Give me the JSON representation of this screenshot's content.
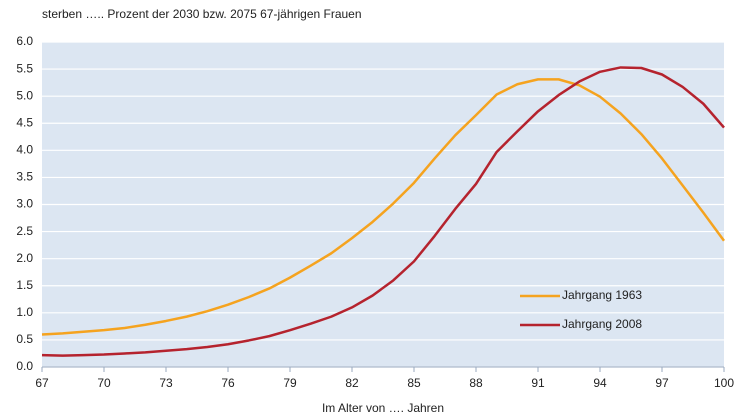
{
  "chart_data": {
    "type": "line",
    "title": "sterben ….. Prozent der 2030 bzw. 2075 67-jährigen Frauen",
    "x_label": "Im Alter von …. Jahren",
    "x": [
      67,
      68,
      69,
      70,
      71,
      72,
      73,
      74,
      75,
      76,
      77,
      78,
      79,
      80,
      81,
      82,
      83,
      84,
      85,
      86,
      87,
      88,
      89,
      90,
      91,
      92,
      93,
      94,
      95,
      96,
      97,
      98,
      99,
      100
    ],
    "series": [
      {
        "name": "Jahrgang 1963",
        "color": "#f5a31f",
        "values": [
          0.6,
          0.62,
          0.65,
          0.68,
          0.72,
          0.78,
          0.85,
          0.93,
          1.03,
          1.15,
          1.29,
          1.45,
          1.65,
          1.87,
          2.1,
          2.38,
          2.68,
          3.02,
          3.4,
          3.85,
          4.28,
          4.65,
          5.03,
          5.22,
          5.31,
          5.31,
          5.2,
          4.99,
          4.68,
          4.3,
          3.85,
          3.35,
          2.85,
          2.33
        ]
      },
      {
        "name": "Jahrgang 2008",
        "color": "#b5232e",
        "values": [
          0.22,
          0.21,
          0.22,
          0.23,
          0.25,
          0.27,
          0.3,
          0.33,
          0.37,
          0.42,
          0.49,
          0.57,
          0.68,
          0.8,
          0.93,
          1.1,
          1.32,
          1.6,
          1.95,
          2.42,
          2.92,
          3.38,
          3.97,
          4.35,
          4.72,
          5.02,
          5.27,
          5.45,
          5.53,
          5.52,
          5.4,
          5.17,
          4.86,
          4.42
        ]
      }
    ],
    "xlim": [
      67,
      100
    ],
    "xticks": [
      67,
      70,
      73,
      76,
      79,
      82,
      85,
      88,
      91,
      94,
      97,
      100
    ],
    "ylim": [
      0,
      6
    ],
    "yticks": [
      {
        "value": 0,
        "label": "0.0"
      },
      0.5,
      {
        "value": 1,
        "label": "1.0"
      },
      1.5,
      {
        "value": 2,
        "label": "2.0"
      },
      2.5,
      {
        "value": 3,
        "label": "3.0"
      },
      3.5,
      {
        "value": 4,
        "label": "4.0"
      },
      4.5,
      {
        "value": 5,
        "label": "5.0"
      },
      5.5,
      {
        "value": 6,
        "label": "6.0"
      }
    ],
    "grid": true,
    "background": "#dce6f2"
  }
}
